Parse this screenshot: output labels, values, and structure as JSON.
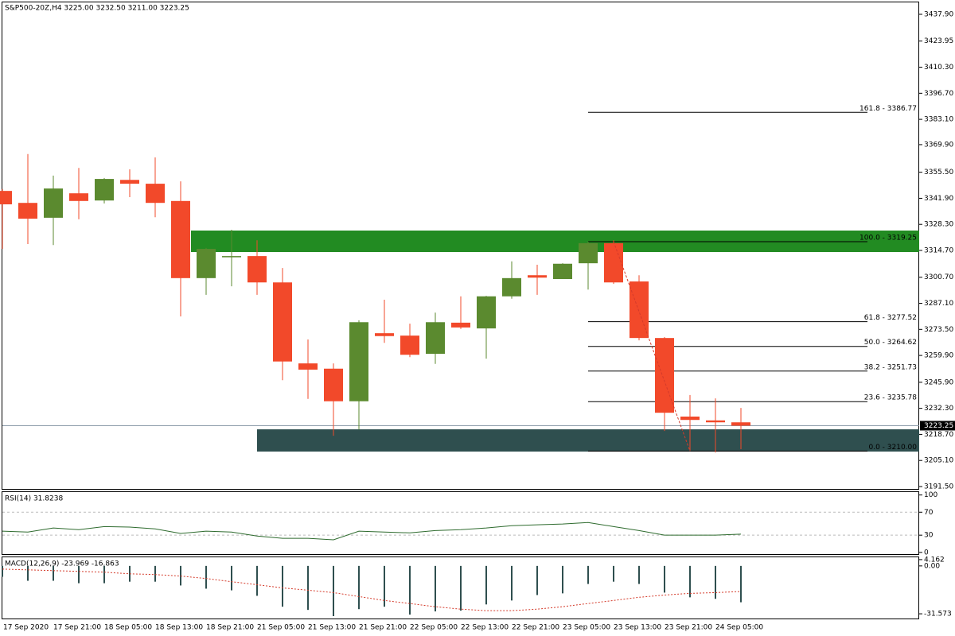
{
  "chart_data": [
    {
      "type": "candlestick",
      "title": "S&P500-20Z,H4  3225.00 3232.50 3211.00 3223.25",
      "categories": [
        "17 Sep 2020",
        null,
        "17 Sep 21:00",
        null,
        "18 Sep 05:00",
        null,
        "18 Sep 13:00",
        null,
        "18 Sep 21:00",
        null,
        "21 Sep 05:00",
        null,
        "21 Sep 13:00",
        null,
        "21 Sep 21:00",
        null,
        "22 Sep 05:00",
        null,
        "22 Sep 13:00",
        null,
        "22 Sep 21:00",
        null,
        "23 Sep 05:00",
        null,
        "23 Sep 13:00",
        null,
        "23 Sep 21:00",
        null,
        "24 Sep 05:00",
        null
      ],
      "open": [
        3345.75,
        3339.5,
        3331.75,
        3344.5,
        3340.75,
        3351.5,
        3349.5,
        3340.5,
        3300.25,
        3311.5,
        3311.75,
        3298,
        3255.75,
        3253,
        3236,
        3271.5,
        3270.25,
        3260.75,
        3277,
        3274,
        3290.75,
        3301.75,
        3299.75,
        3308,
        3318.5,
        3298.5,
        3269,
        3228,
        3226,
        3225
      ],
      "high": [
        3346.75,
        3365,
        3353.75,
        3357.75,
        3352.5,
        3357,
        3363.25,
        3350.75,
        3316,
        3325.5,
        3320,
        3305.5,
        3268.25,
        3255.75,
        3278.25,
        3289,
        3276.5,
        3282.25,
        3290.75,
        3291,
        3309,
        3307.25,
        3308,
        3319.25,
        3320,
        3301.75,
        3269.5,
        3239.25,
        3237.5,
        3232.5
      ],
      "low": [
        3315.5,
        3318,
        3317.5,
        3331,
        3339.25,
        3342.5,
        3332,
        3280.25,
        3291.5,
        3296,
        3291.5,
        3247,
        3237.25,
        3218,
        3221.25,
        3266.5,
        3259,
        3255.5,
        3273.75,
        3258.25,
        3289.5,
        3291.5,
        3299.75,
        3294.25,
        3297.25,
        3267.75,
        3220.5,
        3210.25,
        3209.25,
        3211
      ],
      "close": [
        3338.75,
        3331.25,
        3347,
        3340.5,
        3352,
        3349.5,
        3339.5,
        3300.25,
        3315.5,
        3311.75,
        3298,
        3256.75,
        3252.5,
        3236,
        3277.25,
        3270,
        3260.25,
        3277.25,
        3274.5,
        3290.75,
        3300.25,
        3300.5,
        3307.75,
        3318.5,
        3298,
        3269,
        3230,
        3226.25,
        3225,
        3223.25
      ],
      "up_color": "#5b8a2f",
      "down_color": "#f2492a",
      "ylim": [
        3190.25,
        3445.37
      ],
      "yticks": [
        {
          "value": 3437.9,
          "label": "3437.90"
        },
        {
          "value": 3423.95,
          "label": "3423.95"
        },
        {
          "value": 3410.3,
          "label": "3410.30"
        },
        {
          "value": 3396.7,
          "label": "3396.70"
        },
        {
          "value": 3383.1,
          "label": "3383.10"
        },
        {
          "value": 3369.9,
          "label": "3369.90"
        },
        {
          "value": 3355.5,
          "label": "3355.50"
        },
        {
          "value": 3341.9,
          "label": "3341.90"
        },
        {
          "value": 3328.3,
          "label": "3328.30"
        },
        {
          "value": 3314.7,
          "label": "3314.70"
        },
        {
          "value": 3300.7,
          "label": "3300.70"
        },
        {
          "value": 3287.1,
          "label": "3287.10"
        },
        {
          "value": 3273.5,
          "label": "3273.50"
        },
        {
          "value": 3259.9,
          "label": "3259.90"
        },
        {
          "value": 3245.9,
          "label": "3245.90"
        },
        {
          "value": 3232.3,
          "label": "3232.30"
        },
        {
          "value": 3218.7,
          "label": "3218.70"
        },
        {
          "value": 3205.1,
          "label": "3205.10"
        },
        {
          "value": 3191.5,
          "label": "3191.50"
        }
      ],
      "last_price": {
        "value": 3223.25,
        "label": "3223.25"
      },
      "zones": [
        {
          "top": 3325.07,
          "bottom": 3313.87,
          "color": "#228b22"
        },
        {
          "top": 3221.35,
          "bottom": 3209.75,
          "color": "#2f4f4f"
        }
      ],
      "fib_levels": [
        {
          "value": 3386.77,
          "label": "161.8 - 3386.77"
        },
        {
          "value": 3319.25,
          "label": "100.0 - 3319.25"
        },
        {
          "value": 3277.52,
          "label": "61.8 - 3277.52"
        },
        {
          "value": 3264.62,
          "label": "50.0 - 3264.62"
        },
        {
          "value": 3251.73,
          "label": "38.2 - 3251.73"
        },
        {
          "value": 3235.78,
          "label": "23.6 - 3235.78"
        },
        {
          "value": 3210.0,
          "label": "0.0 - 3210.00"
        }
      ]
    },
    {
      "type": "line",
      "title": "RSI(14) 31.8238",
      "color": "#2e6b2e",
      "values": [
        37,
        35.5,
        42.5,
        39.5,
        45,
        44,
        41,
        33,
        37,
        35.5,
        28.5,
        24.5,
        24.5,
        22,
        37,
        35.5,
        34,
        38,
        39.5,
        42.5,
        46.5,
        48,
        49.5,
        52,
        45,
        38,
        30,
        30,
        30,
        31.82
      ],
      "ylim": [
        -3,
        105
      ],
      "yticks": [
        100,
        70,
        30,
        0
      ],
      "levels": [
        70,
        30
      ]
    },
    {
      "type": "macd",
      "title": "MACD(12,26,9) -23.969 -16.863",
      "color": "#2f4f4f",
      "signal_color": "#d43a2a",
      "values": [
        -7.2,
        -9.8,
        -9.8,
        -11.4,
        -11.4,
        -10.4,
        -10.4,
        -12.9,
        -15.0,
        -16.1,
        -19.7,
        -26.9,
        -29.0,
        -33.1,
        -28.5,
        -26.9,
        -32.1,
        -30.0,
        -29.5,
        -25.4,
        -22.8,
        -19.2,
        -18.1,
        -11.9,
        -10.4,
        -11.9,
        -17.6,
        -20.7,
        -21.7,
        -23.969
      ],
      "signal": [
        -2.1,
        -2.6,
        -3.1,
        -3.6,
        -4.1,
        -5.2,
        -5.7,
        -6.7,
        -8.3,
        -10.4,
        -12.4,
        -14.5,
        -16.0,
        -17.6,
        -20.2,
        -22.8,
        -24.8,
        -26.9,
        -28.5,
        -29.5,
        -29.5,
        -28.5,
        -26.9,
        -24.8,
        -22.8,
        -20.7,
        -19.2,
        -18.1,
        -17.6,
        -16.863
      ],
      "ylim": [
        -34.68,
        5.69
      ],
      "yticks": [
        {
          "value": 4.162,
          "label": "4.162"
        },
        {
          "value": 0,
          "label": "0.00"
        },
        {
          "value": -31.573,
          "label": "-31.573"
        }
      ]
    }
  ]
}
